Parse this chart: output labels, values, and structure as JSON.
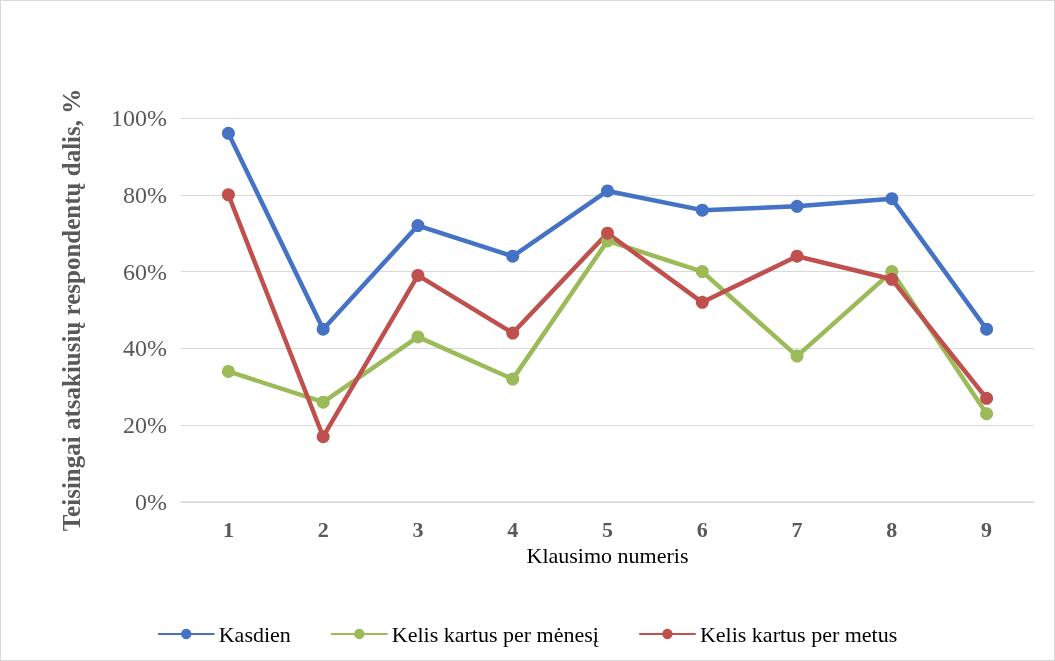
{
  "chart_data": {
    "type": "line",
    "xlabel": "Klausimo numeris",
    "ylabel": "Teisingai atsakiusių respondentų dalis, %",
    "categories": [
      "1",
      "2",
      "3",
      "4",
      "5",
      "6",
      "7",
      "8",
      "9"
    ],
    "series": [
      {
        "name": "Kasdien",
        "color": "#4472c4",
        "values": [
          96,
          45,
          72,
          64,
          81,
          76,
          77,
          79,
          45
        ]
      },
      {
        "name": "Kelis kartus per mėnesį",
        "color": "#9bbb59",
        "values": [
          34,
          26,
          43,
          32,
          68,
          60,
          38,
          60,
          23
        ]
      },
      {
        "name": "Kelis kartus per metus",
        "color": "#c0504d",
        "values": [
          80,
          17,
          59,
          44,
          70,
          52,
          64,
          58,
          27
        ]
      }
    ],
    "ylim": [
      0,
      100
    ],
    "yticks": [
      {
        "value": 0,
        "label": "0%"
      },
      {
        "value": 20,
        "label": "20%"
      },
      {
        "value": 40,
        "label": "40%"
      },
      {
        "value": 60,
        "label": "60%"
      },
      {
        "value": 80,
        "label": "80%"
      },
      {
        "value": 100,
        "label": "100%"
      }
    ],
    "grid": "y",
    "legend": "bottom",
    "marker": "circle",
    "line_style": "solid"
  }
}
